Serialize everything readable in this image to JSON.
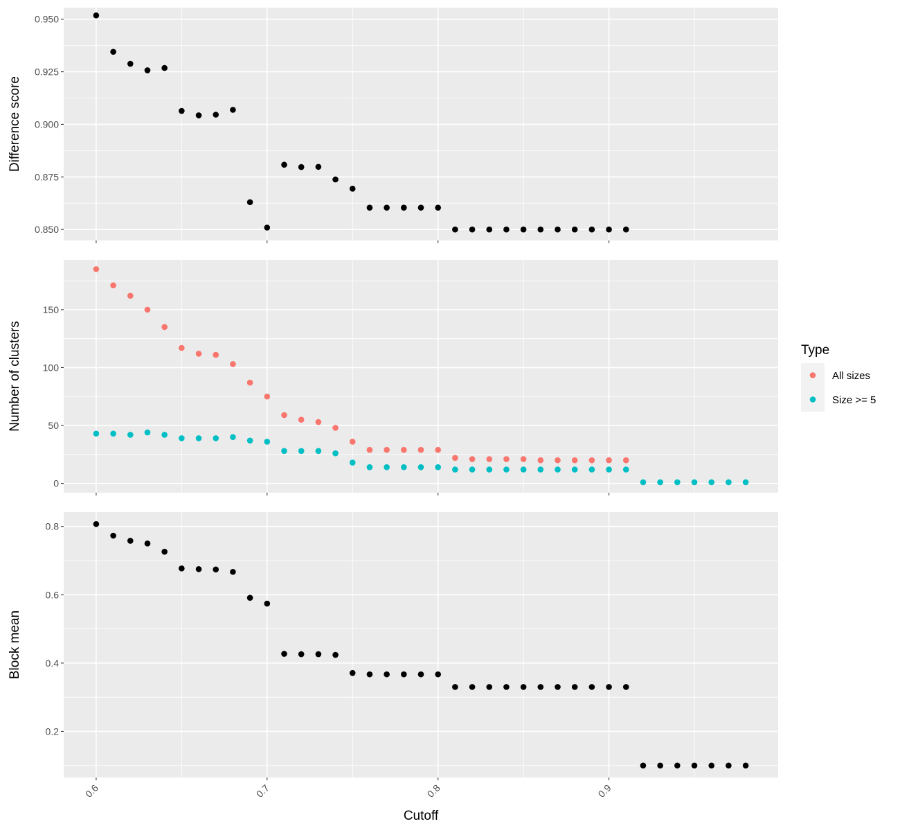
{
  "chart_data": {
    "type": "scatter",
    "x_label": "Cutoff",
    "x_range": [
      0.581,
      0.999
    ],
    "x_ticks": [
      0.6,
      0.7,
      0.8,
      0.9
    ],
    "x_tick_labels": [
      "0.6",
      "0.7",
      "0.8",
      "0.9"
    ],
    "grid": true,
    "panels": [
      {
        "ylabel": "Difference score",
        "ylim": [
          0.8448,
          0.9555
        ],
        "y_ticks": [
          0.85,
          0.875,
          0.9,
          0.925,
          0.95
        ],
        "y_tick_labels": [
          "0.850",
          "0.875",
          "0.900",
          "0.925",
          "0.950"
        ],
        "series": [
          {
            "color": "#000000",
            "x": [
              0.6,
              0.61,
              0.62,
              0.63,
              0.64,
              0.65,
              0.66,
              0.67,
              0.68,
              0.69,
              0.7,
              0.71,
              0.72,
              0.73,
              0.74,
              0.75,
              0.76,
              0.77,
              0.78,
              0.79,
              0.8,
              0.81,
              0.82,
              0.83,
              0.84,
              0.85,
              0.86,
              0.87,
              0.88,
              0.89,
              0.9,
              0.91
            ],
            "y": [
              0.9518,
              0.9345,
              0.9288,
              0.9257,
              0.9268,
              0.9064,
              0.9043,
              0.9046,
              0.9069,
              0.863,
              0.8509,
              0.8808,
              0.8797,
              0.8798,
              0.8738,
              0.8694,
              0.8604,
              0.8604,
              0.8604,
              0.8604,
              0.8604,
              0.85,
              0.85,
              0.85,
              0.85,
              0.85,
              0.85,
              0.85,
              0.85,
              0.85,
              0.85,
              0.85
            ]
          }
        ]
      },
      {
        "ylabel": "Number of clusters",
        "ylim": [
          -8,
          193
        ],
        "y_ticks": [
          0,
          50,
          100,
          150
        ],
        "y_tick_labels": [
          "0",
          "50",
          "100",
          "150"
        ],
        "series": [
          {
            "name": "All sizes",
            "color": "#F8766D",
            "x": [
              0.6,
              0.61,
              0.62,
              0.63,
              0.64,
              0.65,
              0.66,
              0.67,
              0.68,
              0.69,
              0.7,
              0.71,
              0.72,
              0.73,
              0.74,
              0.75,
              0.76,
              0.77,
              0.78,
              0.79,
              0.8,
              0.81,
              0.82,
              0.83,
              0.84,
              0.85,
              0.86,
              0.87,
              0.88,
              0.89,
              0.9,
              0.91
            ],
            "y": [
              185,
              171,
              162,
              150,
              135,
              117,
              112,
              111,
              103,
              87,
              75,
              59,
              55,
              53,
              48,
              36,
              29,
              29,
              29,
              29,
              29,
              22,
              21,
              21,
              21,
              21,
              20,
              20,
              20,
              20,
              20,
              20
            ]
          },
          {
            "name": "Size >= 5",
            "color": "#00BFC4",
            "x": [
              0.6,
              0.61,
              0.62,
              0.63,
              0.64,
              0.65,
              0.66,
              0.67,
              0.68,
              0.69,
              0.7,
              0.71,
              0.72,
              0.73,
              0.74,
              0.75,
              0.76,
              0.77,
              0.78,
              0.79,
              0.8,
              0.81,
              0.82,
              0.83,
              0.84,
              0.85,
              0.86,
              0.87,
              0.88,
              0.89,
              0.9,
              0.91,
              0.92,
              0.93,
              0.94,
              0.95,
              0.96,
              0.97,
              0.98
            ],
            "y": [
              43,
              43,
              42,
              44,
              42,
              39,
              39,
              39,
              40,
              37,
              36,
              28,
              28,
              28,
              26,
              18,
              14,
              14,
              14,
              14,
              14,
              12,
              12,
              12,
              12,
              12,
              12,
              12,
              12,
              12,
              12,
              12,
              1,
              1,
              1,
              1,
              1,
              1,
              1
            ]
          }
        ]
      },
      {
        "ylabel": "Block mean",
        "ylim": [
          0.065,
          0.842
        ],
        "y_ticks": [
          0.2,
          0.4,
          0.6,
          0.8
        ],
        "y_tick_labels": [
          "0.2",
          "0.4",
          "0.6",
          "0.8"
        ],
        "series": [
          {
            "color": "#000000",
            "x": [
              0.6,
              0.61,
              0.62,
              0.63,
              0.64,
              0.65,
              0.66,
              0.67,
              0.68,
              0.69,
              0.7,
              0.71,
              0.72,
              0.73,
              0.74,
              0.75,
              0.76,
              0.77,
              0.78,
              0.79,
              0.8,
              0.81,
              0.82,
              0.83,
              0.84,
              0.85,
              0.86,
              0.87,
              0.88,
              0.89,
              0.9,
              0.91,
              0.92,
              0.93,
              0.94,
              0.95,
              0.96,
              0.97,
              0.98
            ],
            "y": [
              0.807,
              0.773,
              0.758,
              0.75,
              0.726,
              0.677,
              0.675,
              0.674,
              0.667,
              0.591,
              0.574,
              0.427,
              0.426,
              0.426,
              0.424,
              0.371,
              0.367,
              0.367,
              0.367,
              0.367,
              0.367,
              0.33,
              0.33,
              0.33,
              0.33,
              0.33,
              0.33,
              0.33,
              0.33,
              0.33,
              0.33,
              0.33,
              0.1,
              0.1,
              0.1,
              0.1,
              0.1,
              0.1,
              0.1
            ]
          }
        ]
      }
    ],
    "legend": {
      "title": "Type",
      "placement": "right",
      "entries": [
        {
          "label": "All sizes",
          "color": "#F8766D"
        },
        {
          "label": "Size >= 5",
          "color": "#00BFC4"
        }
      ]
    }
  }
}
